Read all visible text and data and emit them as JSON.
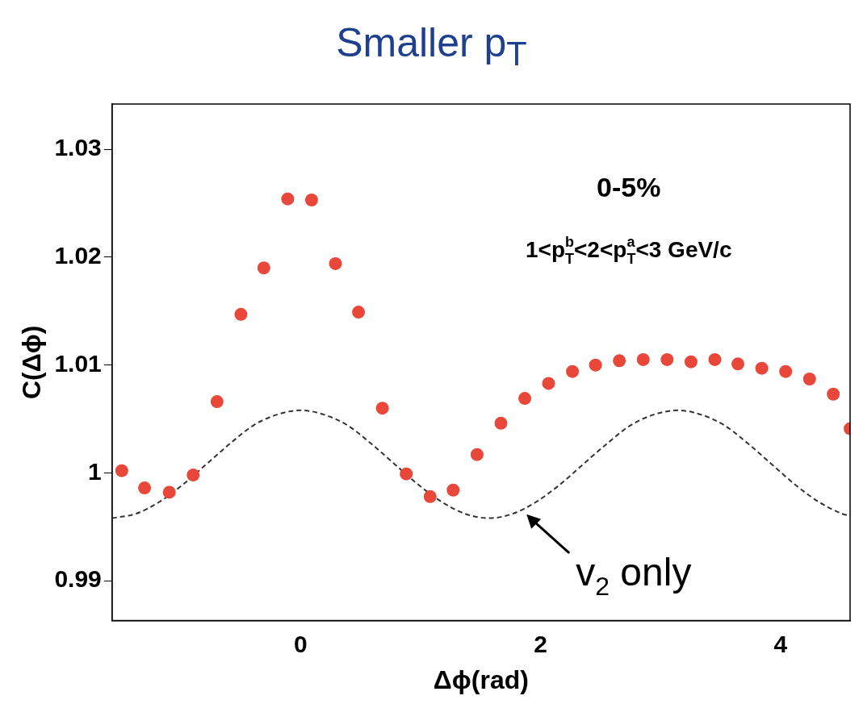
{
  "chart_data": {
    "type": "scatter",
    "title": "Smaller p$_{T}$",
    "xlabel": "Δϕ(rad)",
    "ylabel": "C(Δϕ)",
    "xlim": [
      -1.571,
      4.58
    ],
    "xticks": [
      0,
      2,
      4
    ],
    "ylim": [
      0.9863,
      1.0342
    ],
    "yticks": [
      0.99,
      1,
      1.01,
      1.02,
      1.03
    ],
    "grid": false,
    "legend": false,
    "marker": "circle",
    "series": [
      {
        "color": "#e8473a",
        "x": [
          -1.49,
          -1.3,
          -1.094,
          -0.895,
          -0.696,
          -0.497,
          -0.306,
          -0.107,
          0.092,
          0.291,
          0.483,
          0.682,
          0.881,
          1.08,
          1.272,
          1.471,
          1.67,
          1.869,
          2.067,
          2.266,
          2.458,
          2.657,
          2.856,
          3.055,
          3.254,
          3.453,
          3.645,
          3.844,
          4.043,
          4.242,
          4.44,
          4.58
        ],
        "values": [
          1.0002,
          0.9986,
          0.9982,
          0.9998,
          1.0066,
          1.0147,
          1.019,
          1.0254,
          1.0253,
          1.0194,
          1.0149,
          1.006,
          0.9999,
          0.9978,
          0.9984,
          1.0017,
          1.0046,
          1.0069,
          1.0083,
          1.0094,
          1.01,
          1.0104,
          1.0105,
          1.0105,
          1.0103,
          1.0105,
          1.0101,
          1.0097,
          1.0094,
          1.0087,
          1.0073,
          1.0041
        ]
      },
      {
        "type": "line",
        "color": "#333333",
        "line_style": "dashed",
        "marker": "none",
        "x": [
          -1.571,
          -1.374,
          -1.178,
          -0.982,
          -0.785,
          -0.589,
          -0.393,
          -0.196,
          0,
          0.196,
          0.393,
          0.589,
          0.785,
          0.982,
          1.178,
          1.374,
          1.571,
          1.767,
          1.963,
          2.16,
          2.356,
          2.553,
          2.749,
          2.945,
          3.142,
          3.338,
          3.534,
          3.731,
          3.927,
          4.123,
          4.32,
          4.516,
          4.58
        ],
        "values": [
          0.9958,
          0.9962,
          0.9973,
          0.9989,
          1.0008,
          1.0027,
          1.0044,
          1.0054,
          1.0058,
          1.0054,
          1.0044,
          1.0027,
          1.0008,
          0.9989,
          0.9973,
          0.9962,
          0.9958,
          0.9962,
          0.9973,
          0.9989,
          1.0008,
          1.0027,
          1.0044,
          1.0054,
          1.0058,
          1.0054,
          1.0044,
          1.0027,
          1.0008,
          0.9989,
          0.9973,
          0.9962,
          0.996
        ]
      }
    ],
    "annotations": [
      "0-5%",
      "1<p$^{b}$$_{T}$<2<p$^{a}$$_{T}$<3 GeV/c",
      {
        "text": "v$_{2}$ only",
        "x": 1.87,
        "y": 0.9963
      }
    ]
  }
}
